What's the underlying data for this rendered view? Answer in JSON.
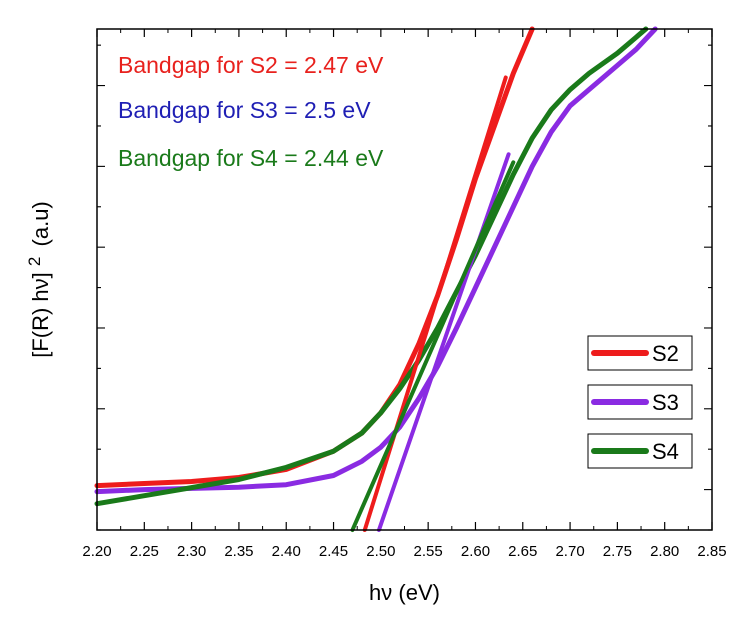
{
  "chart_data": {
    "type": "line",
    "xlabel": "hν (eV)",
    "ylabel_main": "[F(R) hν]",
    "ylabel_sup": "2",
    "ylabel_unit": "(a.u)",
    "xlim": [
      2.2,
      2.85
    ],
    "ylim": [
      -1.0,
      11.4
    ],
    "x_ticks": [
      2.2,
      2.25,
      2.3,
      2.35,
      2.4,
      2.45,
      2.5,
      2.55,
      2.6,
      2.65,
      2.7,
      2.75,
      2.8,
      2.85
    ],
    "x_tick_labels": [
      "2.20",
      "2.25",
      "2.30",
      "2.35",
      "2.40",
      "2.45",
      "2.50",
      "2.55",
      "2.60",
      "2.65",
      "2.70",
      "2.75",
      "2.80",
      "2.85"
    ],
    "y_tick_labels_shown": false,
    "annotations": [
      {
        "text": "Bandgap for S2 = 2.47 eV",
        "color": "#e8211d"
      },
      {
        "text": "Bandgap for S3 = 2.5 eV",
        "color": "#1f1fb4"
      },
      {
        "text": "Bandgap for S4 = 2.44 eV",
        "color": "#1a7a1a"
      }
    ],
    "legend": {
      "placement": "right"
    },
    "series": [
      {
        "name": "S2",
        "color": "#ee1c1c",
        "x": [
          2.2,
          2.25,
          2.3,
          2.35,
          2.4,
          2.45,
          2.48,
          2.5,
          2.52,
          2.54,
          2.56,
          2.58,
          2.6,
          2.62,
          2.64,
          2.66
        ],
        "y": [
          0.1,
          0.15,
          0.2,
          0.3,
          0.5,
          0.95,
          1.4,
          1.9,
          2.6,
          3.6,
          4.8,
          6.2,
          7.7,
          9.0,
          10.3,
          11.4
        ]
      },
      {
        "name": "S3",
        "color": "#8a2be2",
        "x": [
          2.2,
          2.25,
          2.3,
          2.35,
          2.4,
          2.45,
          2.48,
          2.5,
          2.52,
          2.54,
          2.56,
          2.58,
          2.6,
          2.62,
          2.64,
          2.66,
          2.68,
          2.7,
          2.72,
          2.75,
          2.77,
          2.79
        ],
        "y": [
          -0.05,
          0.0,
          0.03,
          0.06,
          0.12,
          0.35,
          0.7,
          1.05,
          1.55,
          2.25,
          3.05,
          4.0,
          5.0,
          6.0,
          7.0,
          8.0,
          8.85,
          9.5,
          9.9,
          10.5,
          10.9,
          11.4
        ]
      },
      {
        "name": "S4",
        "color": "#1a7a1a",
        "x": [
          2.2,
          2.25,
          2.3,
          2.35,
          2.4,
          2.45,
          2.48,
          2.5,
          2.52,
          2.54,
          2.56,
          2.58,
          2.6,
          2.62,
          2.64,
          2.66,
          2.68,
          2.7,
          2.72,
          2.75,
          2.78
        ],
        "y": [
          -0.35,
          -0.15,
          0.05,
          0.25,
          0.55,
          0.95,
          1.4,
          1.9,
          2.5,
          3.2,
          4.0,
          4.9,
          5.8,
          6.8,
          7.8,
          8.7,
          9.4,
          9.9,
          10.3,
          10.8,
          11.4
        ]
      }
    ],
    "tangent_lines": [
      {
        "series": "S2",
        "color": "#ee1c1c",
        "x": [
          2.483,
          2.632
        ],
        "y": [
          -1.0,
          10.2
        ]
      },
      {
        "series": "S3",
        "color": "#8a2be2",
        "x": [
          2.498,
          2.635
        ],
        "y": [
          -1.0,
          8.3
        ]
      },
      {
        "series": "S4",
        "color": "#1a7a1a",
        "x": [
          2.47,
          2.64
        ],
        "y": [
          -1.0,
          8.1
        ]
      }
    ]
  }
}
